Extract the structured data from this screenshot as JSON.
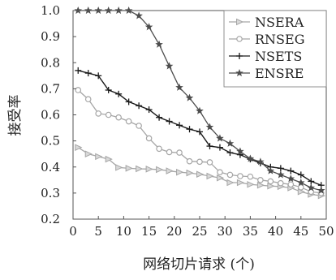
{
  "chart_data": {
    "type": "line",
    "title": "",
    "xlabel": "网络切片请求 (个)",
    "ylabel": "接受率",
    "xlim": [
      0,
      50
    ],
    "ylim": [
      0.2,
      1.0
    ],
    "xticks": [
      0,
      5,
      10,
      15,
      20,
      25,
      30,
      35,
      40,
      45,
      50
    ],
    "yticks": [
      0.2,
      0.3,
      0.4,
      0.5,
      0.6,
      0.7,
      0.8,
      0.9,
      1.0
    ],
    "grid": false,
    "legend_position": "top-right",
    "series": [
      {
        "name": "NSERA",
        "marker": "triangle-right",
        "color": "#a6a6a6",
        "x": [
          1,
          3,
          5,
          7,
          9,
          11,
          13,
          15,
          17,
          19,
          21,
          23,
          25,
          27,
          29,
          31,
          33,
          35,
          37,
          39,
          41,
          43,
          45,
          47,
          49
        ],
        "y": [
          0.475,
          0.45,
          0.44,
          0.43,
          0.398,
          0.395,
          0.393,
          0.392,
          0.39,
          0.385,
          0.38,
          0.377,
          0.372,
          0.365,
          0.358,
          0.34,
          0.34,
          0.333,
          0.33,
          0.327,
          0.325,
          0.32,
          0.305,
          0.295,
          0.29
        ]
      },
      {
        "name": "RNSEG",
        "marker": "circle",
        "color": "#a6a6a6",
        "x": [
          1,
          3,
          5,
          7,
          9,
          11,
          13,
          15,
          17,
          19,
          21,
          23,
          25,
          27,
          29,
          31,
          33,
          35,
          37,
          39,
          41,
          43,
          45,
          47,
          49
        ],
        "y": [
          0.695,
          0.66,
          0.605,
          0.6,
          0.59,
          0.575,
          0.558,
          0.51,
          0.47,
          0.457,
          0.455,
          0.422,
          0.42,
          0.418,
          0.38,
          0.37,
          0.365,
          0.363,
          0.35,
          0.345,
          0.338,
          0.333,
          0.322,
          0.305,
          0.3
        ]
      },
      {
        "name": "NSETS",
        "marker": "plus",
        "color": "#1a1a1a",
        "x": [
          1,
          3,
          5,
          7,
          9,
          11,
          13,
          15,
          17,
          19,
          21,
          23,
          25,
          27,
          29,
          31,
          33,
          35,
          37,
          39,
          41,
          43,
          45,
          47,
          49
        ],
        "y": [
          0.77,
          0.76,
          0.75,
          0.695,
          0.68,
          0.65,
          0.635,
          0.62,
          0.59,
          0.575,
          0.56,
          0.545,
          0.535,
          0.48,
          0.475,
          0.455,
          0.447,
          0.43,
          0.415,
          0.4,
          0.395,
          0.385,
          0.37,
          0.345,
          0.33
        ]
      },
      {
        "name": "ENSRE",
        "marker": "star",
        "color": "#4d4d4d",
        "x": [
          1,
          3,
          5,
          7,
          9,
          11,
          13,
          15,
          17,
          19,
          21,
          23,
          25,
          27,
          29,
          31,
          33,
          35,
          37,
          39,
          41,
          43,
          45,
          47,
          49
        ],
        "y": [
          1.0,
          1.0,
          1.0,
          1.0,
          1.0,
          1.0,
          0.98,
          0.937,
          0.87,
          0.787,
          0.705,
          0.665,
          0.615,
          0.553,
          0.51,
          0.49,
          0.46,
          0.432,
          0.42,
          0.385,
          0.37,
          0.355,
          0.34,
          0.32,
          0.31
        ]
      }
    ]
  }
}
